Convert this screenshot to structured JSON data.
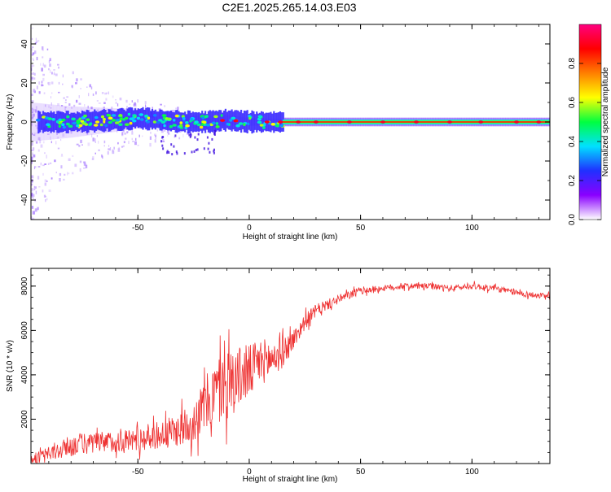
{
  "title": "C2E1.2025.265.14.03.E03",
  "chart_data": [
    {
      "type": "heatmap",
      "name": "spectrogram",
      "xlabel": "Height of straight line (km)",
      "ylabel": "Frequency (Hz)",
      "xlim": [
        -98,
        135
      ],
      "ylim": [
        -50,
        50
      ],
      "x_ticks": [
        -50,
        0,
        50,
        100
      ],
      "y_ticks": [
        -40,
        -20,
        0,
        20,
        40
      ],
      "colorbar": {
        "label": "Normalized spectral amplitude",
        "range": [
          0,
          1
        ],
        "ticks": [
          "0.0",
          "0.2",
          "0.4",
          "0.6",
          "0.8"
        ],
        "colors": [
          "#ffffff",
          "#8a00ff",
          "#2030ff",
          "#00e0ff",
          "#00ff40",
          "#ffff00",
          "#ff7f00",
          "#ff0000",
          "#ff0080"
        ]
      },
      "ridge": {
        "x": [
          -98,
          -80,
          -60,
          -50,
          -40,
          -30,
          -20,
          -10,
          0,
          10,
          20,
          40,
          60,
          80,
          100,
          120,
          135
        ],
        "freq_hz": [
          0,
          0,
          1,
          2,
          1,
          0,
          0,
          1,
          0,
          0,
          0,
          0,
          0,
          0,
          0,
          0,
          0
        ],
        "noise_band_width_hz": [
          10,
          8,
          6,
          5,
          4,
          3.5,
          3,
          2.5,
          2,
          1.8,
          1.5,
          1.5,
          1.5,
          1.5,
          1.5,
          1.5,
          1.5
        ]
      }
    },
    {
      "type": "line",
      "name": "snr",
      "xlabel": "Height of straight line (km)",
      "ylabel": "SNR (10 * v/v)",
      "xlim": [
        -98,
        135
      ],
      "ylim": [
        0,
        8800
      ],
      "x_ticks": [
        -50,
        0,
        50,
        100
      ],
      "y_ticks": [
        2000,
        4000,
        6000,
        8000
      ],
      "line_color": "#ee3030",
      "series": [
        {
          "name": "SNR",
          "x": [
            -98,
            -90,
            -85,
            -80,
            -75,
            -70,
            -60,
            -50,
            -40,
            -35,
            -30,
            -25,
            -20,
            -15,
            -10,
            -5,
            0,
            5,
            10,
            15,
            20,
            25,
            30,
            40,
            50,
            60,
            70,
            80,
            90,
            100,
            110,
            120,
            135
          ],
          "mean": [
            200,
            400,
            600,
            800,
            900,
            900,
            1000,
            1100,
            1300,
            1400,
            1600,
            1900,
            2600,
            3200,
            3600,
            3900,
            4100,
            4600,
            4700,
            5000,
            5600,
            6400,
            6900,
            7400,
            7800,
            7900,
            8000,
            8000,
            7900,
            8000,
            7900,
            7700,
            7500
          ],
          "spread": [
            300,
            500,
            600,
            700,
            700,
            700,
            700,
            800,
            900,
            1000,
            1100,
            1300,
            1800,
            2200,
            2400,
            2000,
            1800,
            1500,
            1300,
            1000,
            700,
            500,
            400,
            300,
            250,
            200,
            200,
            200,
            200,
            200,
            200,
            200,
            200
          ]
        }
      ]
    }
  ]
}
